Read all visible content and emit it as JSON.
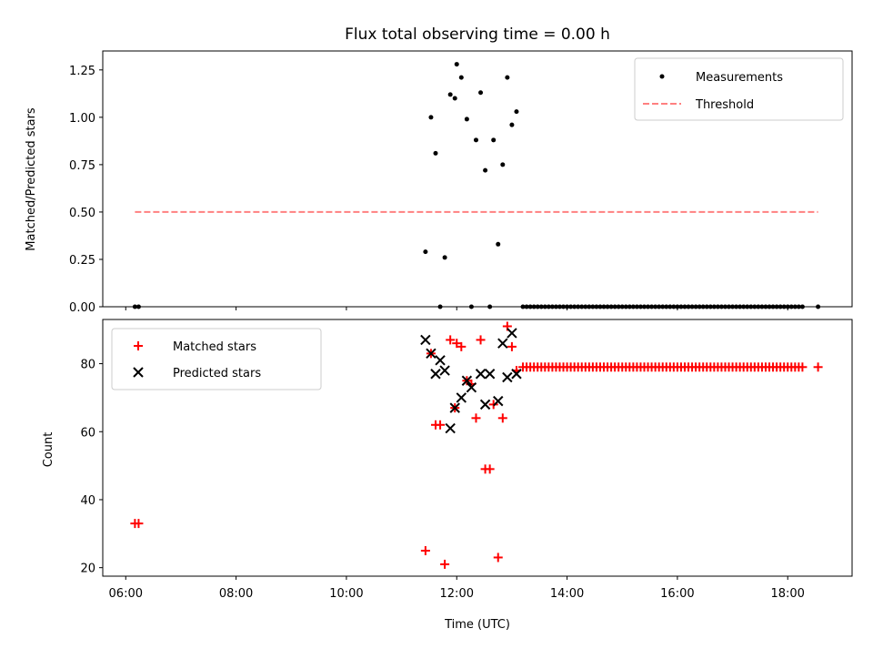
{
  "figure": {
    "title": "Flux total observing time = 0.00 h",
    "xlabel": "Time (UTC)"
  },
  "chart_data": [
    {
      "type": "scatter",
      "title": "Flux total observing time = 0.00 h",
      "ylabel": "Matched/Predicted stars",
      "xlim": [
        "05:35",
        "19:10"
      ],
      "ylim": [
        0,
        1.35
      ],
      "yticks": [
        "0.00",
        "0.25",
        "0.50",
        "0.75",
        "1.00",
        "1.25"
      ],
      "grid": false,
      "legend_position": "top-right",
      "series": [
        {
          "name": "Measurements",
          "color": "#000000",
          "marker": "dot",
          "points": [
            [
              "06:10",
              0
            ],
            [
              "06:14",
              0
            ],
            [
              "11:26",
              0.29
            ],
            [
              "11:32",
              1.0
            ],
            [
              "11:37",
              0.81
            ],
            [
              "11:42",
              0
            ],
            [
              "11:47",
              0.26
            ],
            [
              "11:53",
              1.12
            ],
            [
              "11:58",
              1.1
            ],
            [
              "12:00",
              1.28
            ],
            [
              "12:05",
              1.21
            ],
            [
              "12:11",
              0.99
            ],
            [
              "12:16",
              0
            ],
            [
              "12:21",
              0.88
            ],
            [
              "12:26",
              1.13
            ],
            [
              "12:31",
              0.72
            ],
            [
              "12:36",
              0
            ],
            [
              "12:40",
              0.88
            ],
            [
              "12:45",
              0.33
            ],
            [
              "12:50",
              0.75
            ],
            [
              "12:55",
              1.21
            ],
            [
              "13:00",
              0.96
            ],
            [
              "13:05",
              1.03
            ],
            [
              "13:12",
              0
            ],
            [
              "13:16",
              0
            ],
            [
              "13:20",
              0
            ],
            [
              "13:24",
              0
            ],
            [
              "13:28",
              0
            ],
            [
              "13:32",
              0
            ],
            [
              "13:36",
              0
            ],
            [
              "13:40",
              0
            ],
            [
              "13:44",
              0
            ],
            [
              "13:48",
              0
            ],
            [
              "13:52",
              0
            ],
            [
              "13:56",
              0
            ],
            [
              "14:00",
              0
            ],
            [
              "14:04",
              0
            ],
            [
              "14:08",
              0
            ],
            [
              "14:12",
              0
            ],
            [
              "14:16",
              0
            ],
            [
              "14:20",
              0
            ],
            [
              "14:24",
              0
            ],
            [
              "14:28",
              0
            ],
            [
              "14:32",
              0
            ],
            [
              "14:36",
              0
            ],
            [
              "14:40",
              0
            ],
            [
              "14:44",
              0
            ],
            [
              "14:48",
              0
            ],
            [
              "14:52",
              0
            ],
            [
              "14:56",
              0
            ],
            [
              "15:00",
              0
            ],
            [
              "15:04",
              0
            ],
            [
              "15:08",
              0
            ],
            [
              "15:12",
              0
            ],
            [
              "15:16",
              0
            ],
            [
              "15:20",
              0
            ],
            [
              "15:24",
              0
            ],
            [
              "15:28",
              0
            ],
            [
              "15:32",
              0
            ],
            [
              "15:36",
              0
            ],
            [
              "15:40",
              0
            ],
            [
              "15:44",
              0
            ],
            [
              "15:48",
              0
            ],
            [
              "15:52",
              0
            ],
            [
              "15:56",
              0
            ],
            [
              "16:00",
              0
            ],
            [
              "16:04",
              0
            ],
            [
              "16:08",
              0
            ],
            [
              "16:12",
              0
            ],
            [
              "16:16",
              0
            ],
            [
              "16:20",
              0
            ],
            [
              "16:24",
              0
            ],
            [
              "16:28",
              0
            ],
            [
              "16:32",
              0
            ],
            [
              "16:36",
              0
            ],
            [
              "16:40",
              0
            ],
            [
              "16:44",
              0
            ],
            [
              "16:48",
              0
            ],
            [
              "16:52",
              0
            ],
            [
              "16:56",
              0
            ],
            [
              "17:00",
              0
            ],
            [
              "17:04",
              0
            ],
            [
              "17:08",
              0
            ],
            [
              "17:12",
              0
            ],
            [
              "17:16",
              0
            ],
            [
              "17:20",
              0
            ],
            [
              "17:24",
              0
            ],
            [
              "17:28",
              0
            ],
            [
              "17:32",
              0
            ],
            [
              "17:36",
              0
            ],
            [
              "17:40",
              0
            ],
            [
              "17:44",
              0
            ],
            [
              "17:48",
              0
            ],
            [
              "17:52",
              0
            ],
            [
              "17:56",
              0
            ],
            [
              "18:00",
              0
            ],
            [
              "18:04",
              0
            ],
            [
              "18:08",
              0
            ],
            [
              "18:12",
              0
            ],
            [
              "18:16",
              0
            ],
            [
              "18:33",
              0
            ]
          ]
        },
        {
          "name": "Threshold",
          "color": "#ff8080",
          "line_style": "dashed",
          "points": [
            [
              "06:10",
              0.5
            ],
            [
              "18:33",
              0.5
            ]
          ]
        }
      ]
    },
    {
      "type": "scatter",
      "ylabel": "Count",
      "xlim": [
        "05:35",
        "19:10"
      ],
      "ylim": [
        17.5,
        93
      ],
      "yticks": [
        "20",
        "40",
        "60",
        "80"
      ],
      "xticks": [
        "06:00",
        "08:00",
        "10:00",
        "12:00",
        "14:00",
        "16:00",
        "18:00"
      ],
      "grid": false,
      "legend_position": "top-left",
      "series": [
        {
          "name": "Matched stars",
          "color": "#ff0000",
          "marker": "plus",
          "points": [
            [
              "06:10",
              33
            ],
            [
              "06:14",
              33
            ],
            [
              "11:26",
              25
            ],
            [
              "11:32",
              83
            ],
            [
              "11:37",
              62
            ],
            [
              "11:42",
              62
            ],
            [
              "11:47",
              21
            ],
            [
              "11:53",
              87
            ],
            [
              "11:58",
              67
            ],
            [
              "12:00",
              86
            ],
            [
              "12:05",
              85
            ],
            [
              "12:11",
              75
            ],
            [
              "12:16",
              74
            ],
            [
              "12:21",
              64
            ],
            [
              "12:26",
              87
            ],
            [
              "12:31",
              49
            ],
            [
              "12:36",
              49
            ],
            [
              "12:40",
              68
            ],
            [
              "12:45",
              23
            ],
            [
              "12:50",
              64
            ],
            [
              "12:55",
              91
            ],
            [
              "13:00",
              85
            ],
            [
              "13:05",
              78
            ],
            [
              "13:12",
              79
            ],
            [
              "13:16",
              79
            ],
            [
              "13:20",
              79
            ],
            [
              "13:24",
              79
            ],
            [
              "13:28",
              79
            ],
            [
              "13:32",
              79
            ],
            [
              "13:36",
              79
            ],
            [
              "13:40",
              79
            ],
            [
              "13:44",
              79
            ],
            [
              "13:48",
              79
            ],
            [
              "13:52",
              79
            ],
            [
              "13:56",
              79
            ],
            [
              "14:00",
              79
            ],
            [
              "14:04",
              79
            ],
            [
              "14:08",
              79
            ],
            [
              "14:12",
              79
            ],
            [
              "14:16",
              79
            ],
            [
              "14:20",
              79
            ],
            [
              "14:24",
              79
            ],
            [
              "14:28",
              79
            ],
            [
              "14:32",
              79
            ],
            [
              "14:36",
              79
            ],
            [
              "14:40",
              79
            ],
            [
              "14:44",
              79
            ],
            [
              "14:48",
              79
            ],
            [
              "14:52",
              79
            ],
            [
              "14:56",
              79
            ],
            [
              "15:00",
              79
            ],
            [
              "15:04",
              79
            ],
            [
              "15:08",
              79
            ],
            [
              "15:12",
              79
            ],
            [
              "15:16",
              79
            ],
            [
              "15:20",
              79
            ],
            [
              "15:24",
              79
            ],
            [
              "15:28",
              79
            ],
            [
              "15:32",
              79
            ],
            [
              "15:36",
              79
            ],
            [
              "15:40",
              79
            ],
            [
              "15:44",
              79
            ],
            [
              "15:48",
              79
            ],
            [
              "15:52",
              79
            ],
            [
              "15:56",
              79
            ],
            [
              "16:00",
              79
            ],
            [
              "16:04",
              79
            ],
            [
              "16:08",
              79
            ],
            [
              "16:12",
              79
            ],
            [
              "16:16",
              79
            ],
            [
              "16:20",
              79
            ],
            [
              "16:24",
              79
            ],
            [
              "16:28",
              79
            ],
            [
              "16:32",
              79
            ],
            [
              "16:36",
              79
            ],
            [
              "16:40",
              79
            ],
            [
              "16:44",
              79
            ],
            [
              "16:48",
              79
            ],
            [
              "16:52",
              79
            ],
            [
              "16:56",
              79
            ],
            [
              "17:00",
              79
            ],
            [
              "17:04",
              79
            ],
            [
              "17:08",
              79
            ],
            [
              "17:12",
              79
            ],
            [
              "17:16",
              79
            ],
            [
              "17:20",
              79
            ],
            [
              "17:24",
              79
            ],
            [
              "17:28",
              79
            ],
            [
              "17:32",
              79
            ],
            [
              "17:36",
              79
            ],
            [
              "17:40",
              79
            ],
            [
              "17:44",
              79
            ],
            [
              "17:48",
              79
            ],
            [
              "17:52",
              79
            ],
            [
              "17:56",
              79
            ],
            [
              "18:00",
              79
            ],
            [
              "18:04",
              79
            ],
            [
              "18:08",
              79
            ],
            [
              "18:12",
              79
            ],
            [
              "18:16",
              79
            ],
            [
              "18:33",
              79
            ]
          ]
        },
        {
          "name": "Predicted stars",
          "color": "#000000",
          "marker": "x",
          "points": [
            [
              "11:26",
              87
            ],
            [
              "11:32",
              83
            ],
            [
              "11:37",
              77
            ],
            [
              "11:42",
              81
            ],
            [
              "11:47",
              78
            ],
            [
              "11:53",
              61
            ],
            [
              "11:58",
              67
            ],
            [
              "12:05",
              70
            ],
            [
              "12:11",
              75
            ],
            [
              "12:16",
              73
            ],
            [
              "12:26",
              77
            ],
            [
              "12:31",
              68
            ],
            [
              "12:36",
              77
            ],
            [
              "12:45",
              69
            ],
            [
              "12:50",
              86
            ],
            [
              "12:55",
              76
            ],
            [
              "13:00",
              89
            ],
            [
              "13:05",
              77
            ]
          ]
        }
      ]
    }
  ]
}
